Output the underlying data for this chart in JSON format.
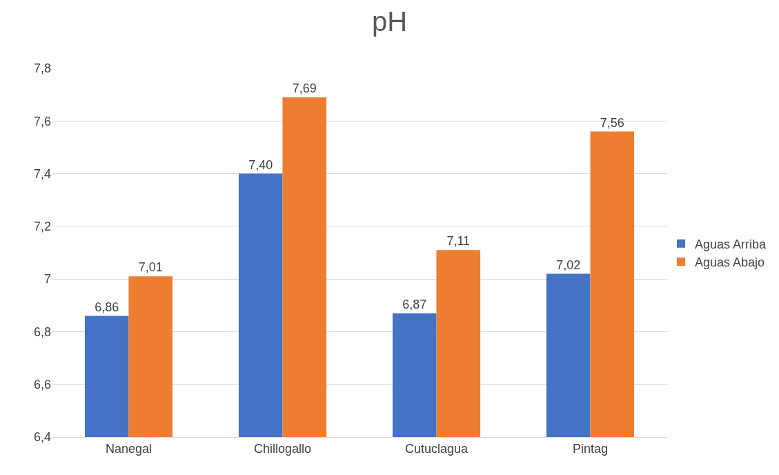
{
  "chart_data": {
    "type": "bar",
    "title": "pH",
    "categories": [
      "Nanegal",
      "Chillogallo",
      "Cutuclagua",
      "Pintag"
    ],
    "series": [
      {
        "name": "Aguas Arriba",
        "color": "#4472c4",
        "values": [
          6.86,
          7.4,
          6.87,
          7.02
        ],
        "value_labels": [
          "6,86",
          "7,40",
          "6,87",
          "7,02"
        ]
      },
      {
        "name": "Aguas Abajo",
        "color": "#ed7d31",
        "values": [
          7.01,
          7.69,
          7.11,
          7.56
        ],
        "value_labels": [
          "7,01",
          "7,69",
          "7,11",
          "7,56"
        ]
      }
    ],
    "ylim": [
      6.4,
      7.8
    ],
    "yticks": [
      {
        "value": 6.4,
        "label": "6,4"
      },
      {
        "value": 6.6,
        "label": "6,6"
      },
      {
        "value": 6.8,
        "label": "6,8"
      },
      7,
      {
        "value": 7.2,
        "label": "7,2"
      },
      {
        "value": 7.4,
        "label": "7,4"
      },
      {
        "value": 7.6,
        "label": "7,6"
      },
      {
        "value": 7.8,
        "label": "7,8"
      }
    ],
    "grid": "y",
    "legend": "right"
  }
}
